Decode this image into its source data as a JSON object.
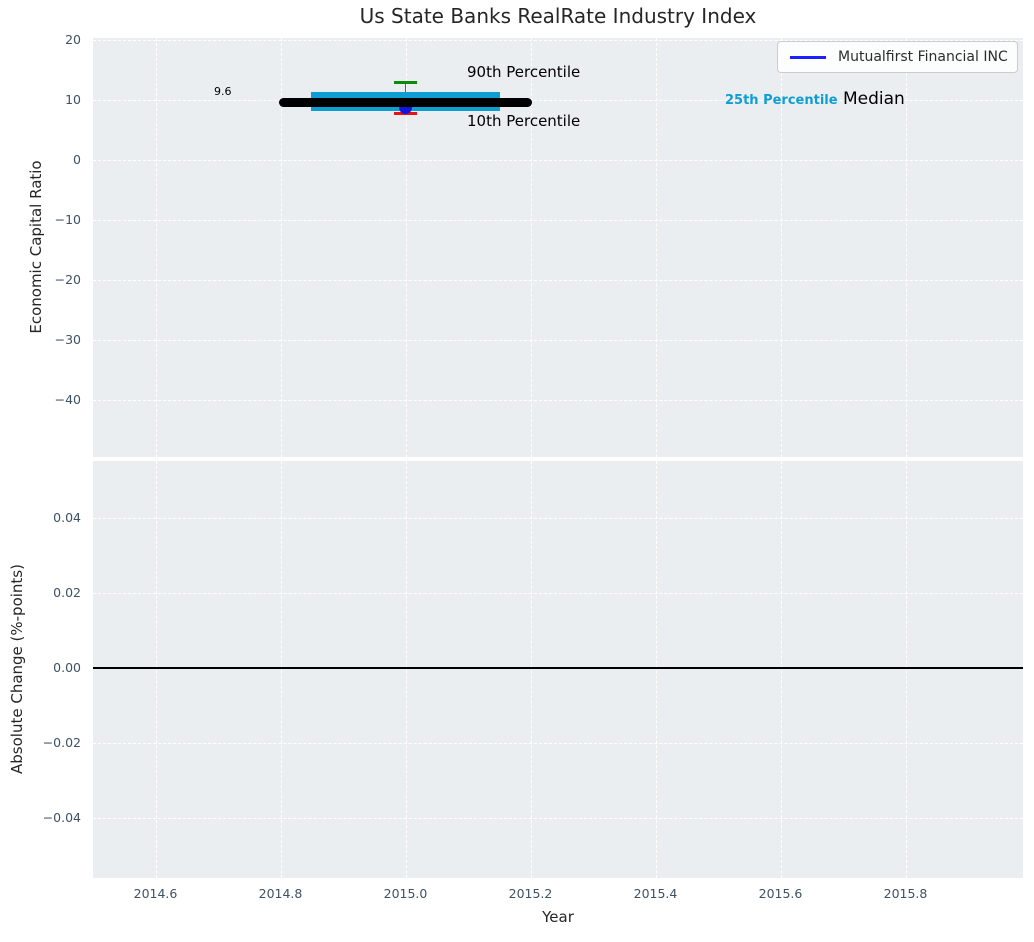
{
  "figure_title": "Us State Banks RealRate Industry Index",
  "colors": {
    "axes_background": "#ebeef0",
    "gridline": "#ffffff",
    "tick_label": "#3e5166",
    "box_fill": "#0f9ed3",
    "median_line": "#000000",
    "p90_cap": "#0a8c0a",
    "p10_cap": "#e61414",
    "company_dot": "#1414dc",
    "legend_line": "#1e1eff",
    "zero_line": "#000000"
  },
  "chart_data": [
    {
      "type": "box",
      "title": "Us State Banks RealRate Industry Index",
      "ylabel": "Economic Capital Ratio",
      "ylim": [
        -49.8,
        20.3
      ],
      "xlim": [
        2014.5,
        2015.99
      ],
      "grid": true,
      "ytick_values": [
        20,
        10,
        0,
        -10,
        -20,
        -30,
        -40
      ],
      "ytick_labels": [
        "20",
        "10",
        "0",
        "−10",
        "−20",
        "−30",
        "−40"
      ],
      "box": {
        "x": 2015.0,
        "median": 9.6,
        "p25": 8.2,
        "p75": 11.3,
        "p10": 7.8,
        "p90": 13.0,
        "company_value": 8.8
      },
      "annotations": {
        "median_value_label": "9.6",
        "p90_label": "90th Percentile",
        "p10_label": "10th Percentile",
        "p25_label": "25th Percentile",
        "median_label": "Median"
      },
      "legend": {
        "position": "upper right",
        "label": "Mutualfirst Financial INC"
      }
    },
    {
      "type": "line",
      "ylabel": "Absolute Change (%-points)",
      "xlabel": "Year",
      "ylim": [
        -0.055,
        0.055
      ],
      "xlim": [
        2014.5,
        2015.99
      ],
      "grid": true,
      "ytick_values": [
        0.04,
        0.02,
        0.0,
        -0.02,
        -0.04
      ],
      "ytick_labels": [
        "0.04",
        "0.02",
        "0.00",
        "−0.02",
        "−0.04"
      ],
      "xtick_values": [
        2014.6,
        2014.8,
        2015.0,
        2015.2,
        2015.4,
        2015.6,
        2015.8
      ],
      "xtick_labels": [
        "2014.6",
        "2014.8",
        "2015.0",
        "2015.2",
        "2015.4",
        "2015.6",
        "2015.8"
      ],
      "zero_line": 0.0
    }
  ]
}
